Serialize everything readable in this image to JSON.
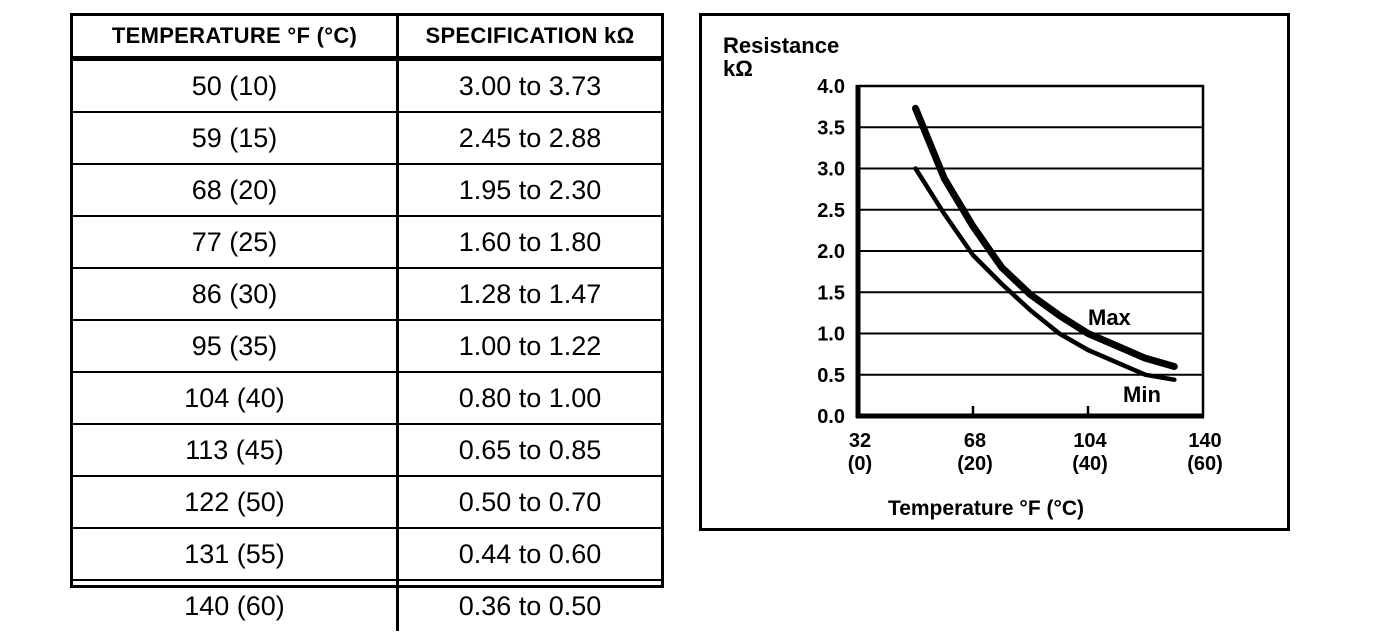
{
  "table": {
    "headers": [
      "TEMPERATURE °F (°C)",
      "SPECIFICATION kΩ"
    ],
    "rows": [
      [
        "50 (10)",
        "3.00 to 3.73"
      ],
      [
        "59 (15)",
        "2.45 to 2.88"
      ],
      [
        "68 (20)",
        "1.95 to 2.30"
      ],
      [
        "77 (25)",
        "1.60 to 1.80"
      ],
      [
        "86 (30)",
        "1.28 to 1.47"
      ],
      [
        "95 (35)",
        "1.00 to 1.22"
      ],
      [
        "104 (40)",
        "0.80 to 1.00"
      ],
      [
        "113 (45)",
        "0.65 to 0.85"
      ],
      [
        "122 (50)",
        "0.50 to 0.70"
      ],
      [
        "131 (55)",
        "0.44 to 0.60"
      ],
      [
        "140 (60)",
        "0.36 to 0.50"
      ]
    ]
  },
  "chart": {
    "y_title_line1": "Resistance",
    "y_title_line2": "kΩ"
  },
  "chart_data": {
    "type": "line",
    "title": "",
    "xlabel": "Temperature °F (°C)",
    "ylabel": "Resistance kΩ",
    "xlim": [
      32,
      140
    ],
    "ylim": [
      0.0,
      4.0
    ],
    "grid": "horizontal",
    "legend": "inline-labels",
    "y_ticks": [
      4.0,
      3.5,
      3.0,
      2.5,
      2.0,
      1.5,
      1.0,
      0.5,
      0.0
    ],
    "y_tick_labels": [
      "4.0",
      "3.5",
      "3.0",
      "2.5",
      "2.0",
      "1.5",
      "1.0",
      "0.5",
      "0.0"
    ],
    "x_ticks": [
      {
        "value": 32,
        "label": "32",
        "sublabel": "(0)"
      },
      {
        "value": 68,
        "label": "68",
        "sublabel": "(20)"
      },
      {
        "value": 104,
        "label": "104",
        "sublabel": "(40)"
      },
      {
        "value": 140,
        "label": "140",
        "sublabel": "(60)"
      }
    ],
    "x": [
      50,
      59,
      68,
      77,
      86,
      95,
      104,
      113,
      122,
      131
    ],
    "series": [
      {
        "name": "Max",
        "values": [
          3.73,
          2.88,
          2.3,
          1.8,
          1.47,
          1.22,
          1.0,
          0.85,
          0.7,
          0.6
        ]
      },
      {
        "name": "Min",
        "values": [
          3.0,
          2.45,
          1.95,
          1.6,
          1.28,
          1.0,
          0.8,
          0.65,
          0.5,
          0.44
        ]
      }
    ],
    "colors": {
      "line": "#000000",
      "background": "#ffffff"
    }
  }
}
